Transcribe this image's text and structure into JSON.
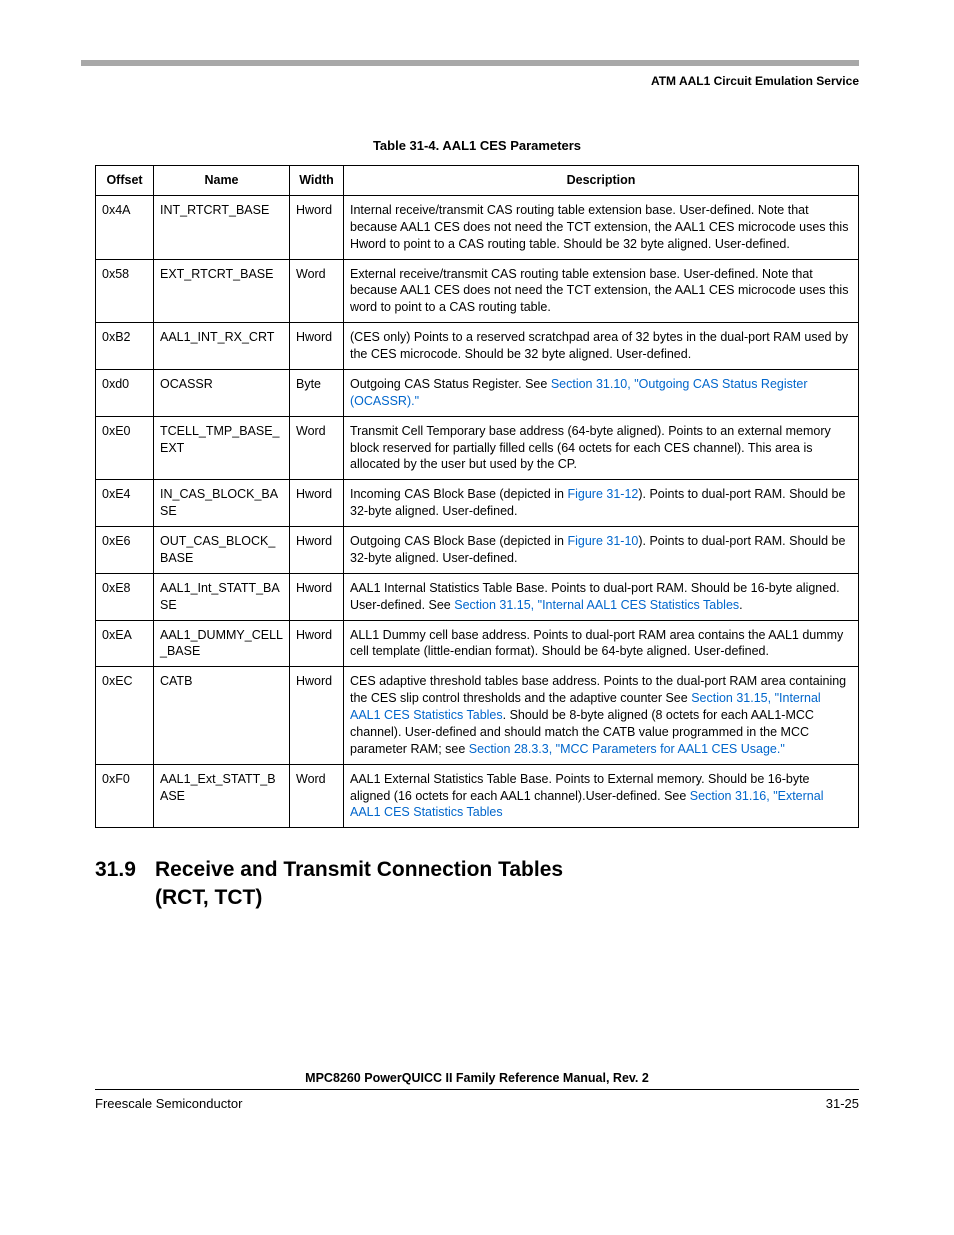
{
  "header": {
    "right_text": "ATM AAL1 Circuit Emulation Service"
  },
  "table": {
    "caption": "Table 31-4. AAL1 CES Parameters",
    "headers": {
      "offset": "Offset",
      "name": "Name",
      "width": "Width",
      "description": "Description"
    },
    "rows": [
      {
        "offset": "0x4A",
        "name": "INT_RTCRT_BASE",
        "width": "Hword",
        "desc_segments": [
          {
            "t": "Internal receive/transmit CAS routing table extension base. User-defined. Note that because AAL1 CES does not need the TCT extension, the AAL1 CES microcode uses this Hword to point to a CAS routing table. Should be 32 byte aligned. User-defined."
          }
        ]
      },
      {
        "offset": "0x58",
        "name": "EXT_RTCRT_BASE",
        "width": "Word",
        "desc_segments": [
          {
            "t": "External receive/transmit CAS routing table extension base. User-defined. Note that because AAL1 CES does not need the TCT extension, the AAL1 CES microcode uses this word to point to a CAS routing table."
          }
        ]
      },
      {
        "offset": "0xB2",
        "name": "AAL1_INT_RX_CRT",
        "width": "Hword",
        "desc_segments": [
          {
            "t": "(CES only) Points to a reserved scratchpad area of 32 bytes in the dual-port RAM used by the CES microcode. Should be 32 byte aligned. User-defined."
          }
        ]
      },
      {
        "offset": "0xd0",
        "name": "OCASSR",
        "width": "Byte",
        "desc_segments": [
          {
            "t": "Outgoing CAS Status Register. See "
          },
          {
            "t": "Section 31.10, \"Outgoing CAS Status Register (OCASSR).\"",
            "link": true
          }
        ]
      },
      {
        "offset": "0xE0",
        "name": "TCELL_TMP_BASE_EXT",
        "width": "Word",
        "desc_segments": [
          {
            "t": "Transmit Cell Temporary base address (64-byte aligned). Points to an external memory block reserved for partially filled cells (64 octets for each CES channel). This area is allocated by the user but used by the CP."
          }
        ]
      },
      {
        "offset": "0xE4",
        "name": "IN_CAS_BLOCK_BASE",
        "width": "Hword",
        "desc_segments": [
          {
            "t": "Incoming CAS Block Base (depicted in "
          },
          {
            "t": "Figure 31-12",
            "link": true
          },
          {
            "t": "). Points to dual-port RAM. Should be 32-byte aligned. User-defined."
          }
        ]
      },
      {
        "offset": "0xE6",
        "name": "OUT_CAS_BLOCK_BASE",
        "width": "Hword",
        "desc_segments": [
          {
            "t": "Outgoing CAS Block Base (depicted in "
          },
          {
            "t": "Figure 31-10",
            "link": true
          },
          {
            "t": "). Points to dual-port RAM. Should be 32-byte aligned. User-defined."
          }
        ]
      },
      {
        "offset": "0xE8",
        "name": "AAL1_Int_STATT_BASE",
        "width": "Hword",
        "desc_segments": [
          {
            "t": "AAL1 Internal Statistics Table Base. Points to dual-port RAM. Should be 16-byte aligned. User-defined. See "
          },
          {
            "t": "Section 31.15, \"Internal AAL1 CES Statistics Tables",
            "link": true
          },
          {
            "t": "."
          }
        ]
      },
      {
        "offset": "0xEA",
        "name": "AAL1_DUMMY_CELL_BASE",
        "width": "Hword",
        "desc_segments": [
          {
            "t": "ALL1 Dummy cell base address. Points to dual-port RAM area contains the AAL1 dummy cell template (little-endian format). Should be 64-byte aligned. User-defined."
          }
        ]
      },
      {
        "offset": "0xEC",
        "name": "CATB",
        "width": "Hword",
        "desc_segments": [
          {
            "t": "CES adaptive threshold tables base address. Points to the dual-port RAM area containing the CES slip control thresholds and the adaptive counter See "
          },
          {
            "t": "Section 31.15, \"Internal AAL1 CES Statistics Tables",
            "link": true
          },
          {
            "t": ".   Should be 8-byte aligned (8 octets for each AAL1-MCC channel). User-defined and should match the CATB value programmed in the MCC parameter RAM; see "
          },
          {
            "t": "Section 28.3.3, \"MCC Parameters for AAL1 CES Usage.\"",
            "link": true
          }
        ]
      },
      {
        "offset": "0xF0",
        "name": "AAL1_Ext_STATT_BASE",
        "width": "Word",
        "desc_segments": [
          {
            "t": "AAL1 External Statistics Table Base. Points to External memory. Should be 16-byte aligned (16 octets for each AAL1 channel).User-defined. See "
          },
          {
            "t": "Section 31.16, \"External AAL1 CES Statistics Tables",
            "link": true
          }
        ]
      }
    ]
  },
  "section": {
    "number": "31.9",
    "title_line1": "Receive and Transmit Connection Tables",
    "title_line2": "(RCT, TCT)"
  },
  "footer": {
    "manual_title": "MPC8260 PowerQUICC II Family Reference Manual, Rev. 2",
    "left": "Freescale Semiconductor",
    "right": "31-25"
  }
}
